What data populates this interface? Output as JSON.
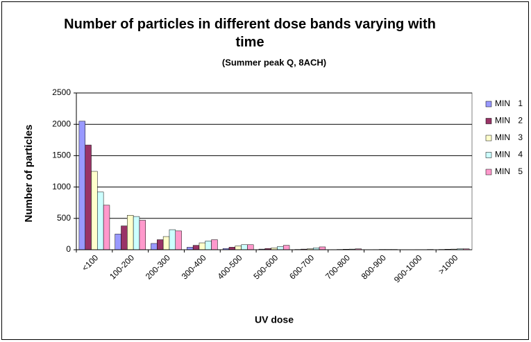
{
  "chart_data": {
    "type": "bar",
    "title": "Number of particles in different dose bands varying with time",
    "subtitle": "(Summer peak Q, 8ACH)",
    "x_label": "UV dose",
    "y_label": "Number of particles",
    "categories": [
      "<100",
      "100-200",
      "200-300",
      "300-400",
      "400-500",
      "500-600",
      "600-700",
      "700-800",
      "800-900",
      "900-1000",
      ">1000"
    ],
    "series": [
      {
        "name": "MIN 1",
        "color": "#9999ff",
        "values": [
          2050,
          250,
          100,
          40,
          20,
          10,
          5,
          3,
          2,
          2,
          5
        ]
      },
      {
        "name": "MIN 2",
        "color": "#993366",
        "values": [
          1670,
          380,
          160,
          70,
          40,
          20,
          10,
          5,
          3,
          2,
          8
        ]
      },
      {
        "name": "MIN 3",
        "color": "#ffffcc",
        "values": [
          1250,
          550,
          210,
          110,
          60,
          30,
          15,
          8,
          5,
          3,
          10
        ]
      },
      {
        "name": "MIN 4",
        "color": "#ccffff",
        "values": [
          920,
          530,
          320,
          140,
          80,
          50,
          30,
          10,
          5,
          3,
          15
        ]
      },
      {
        "name": "MIN 5",
        "color": "#ff99cc",
        "values": [
          710,
          470,
          300,
          160,
          80,
          70,
          45,
          15,
          5,
          5,
          15
        ]
      }
    ],
    "ylim": [
      0,
      2500
    ],
    "yticks": [
      0,
      500,
      1000,
      1500,
      2000,
      2500
    ],
    "grid": true,
    "legend": "right"
  }
}
